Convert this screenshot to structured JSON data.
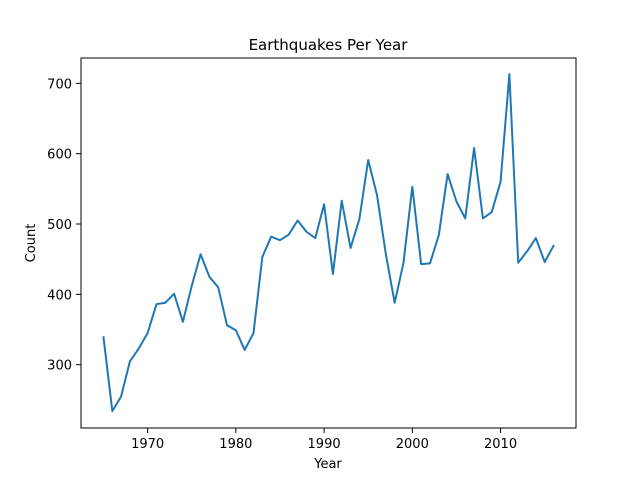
{
  "chart_data": {
    "type": "line",
    "title": "Earthquakes Per Year",
    "xlabel": "Year",
    "ylabel": "Count",
    "xlim": [
      1962.45,
      2018.55
    ],
    "ylim": [
      210,
      736
    ],
    "xticks": [
      1970,
      1980,
      1990,
      2000,
      2010
    ],
    "yticks": [
      300,
      400,
      500,
      600,
      700
    ],
    "grid": false,
    "series": [
      {
        "name": "Count",
        "color": "#1f77b4",
        "x": [
          1965,
          1966,
          1967,
          1968,
          1969,
          1970,
          1971,
          1972,
          1973,
          1974,
          1975,
          1976,
          1977,
          1978,
          1979,
          1980,
          1981,
          1982,
          1983,
          1984,
          1985,
          1986,
          1987,
          1988,
          1989,
          1990,
          1991,
          1992,
          1993,
          1994,
          1995,
          1996,
          1997,
          1998,
          1999,
          2000,
          2001,
          2002,
          2003,
          2004,
          2005,
          2006,
          2007,
          2008,
          2009,
          2010,
          2011,
          2012,
          2013,
          2014,
          2015,
          2016
        ],
        "y": [
          339,
          234,
          255,
          305,
          323,
          345,
          386,
          388,
          401,
          361,
          412,
          457,
          425,
          410,
          356,
          349,
          321,
          345,
          453,
          482,
          477,
          485,
          505,
          489,
          480,
          528,
          429,
          533,
          466,
          507,
          591,
          541,
          457,
          388,
          445,
          553,
          443,
          444,
          484,
          571,
          532,
          508,
          608,
          508,
          517,
          560,
          713,
          445,
          461,
          480,
          446,
          469
        ]
      }
    ]
  }
}
